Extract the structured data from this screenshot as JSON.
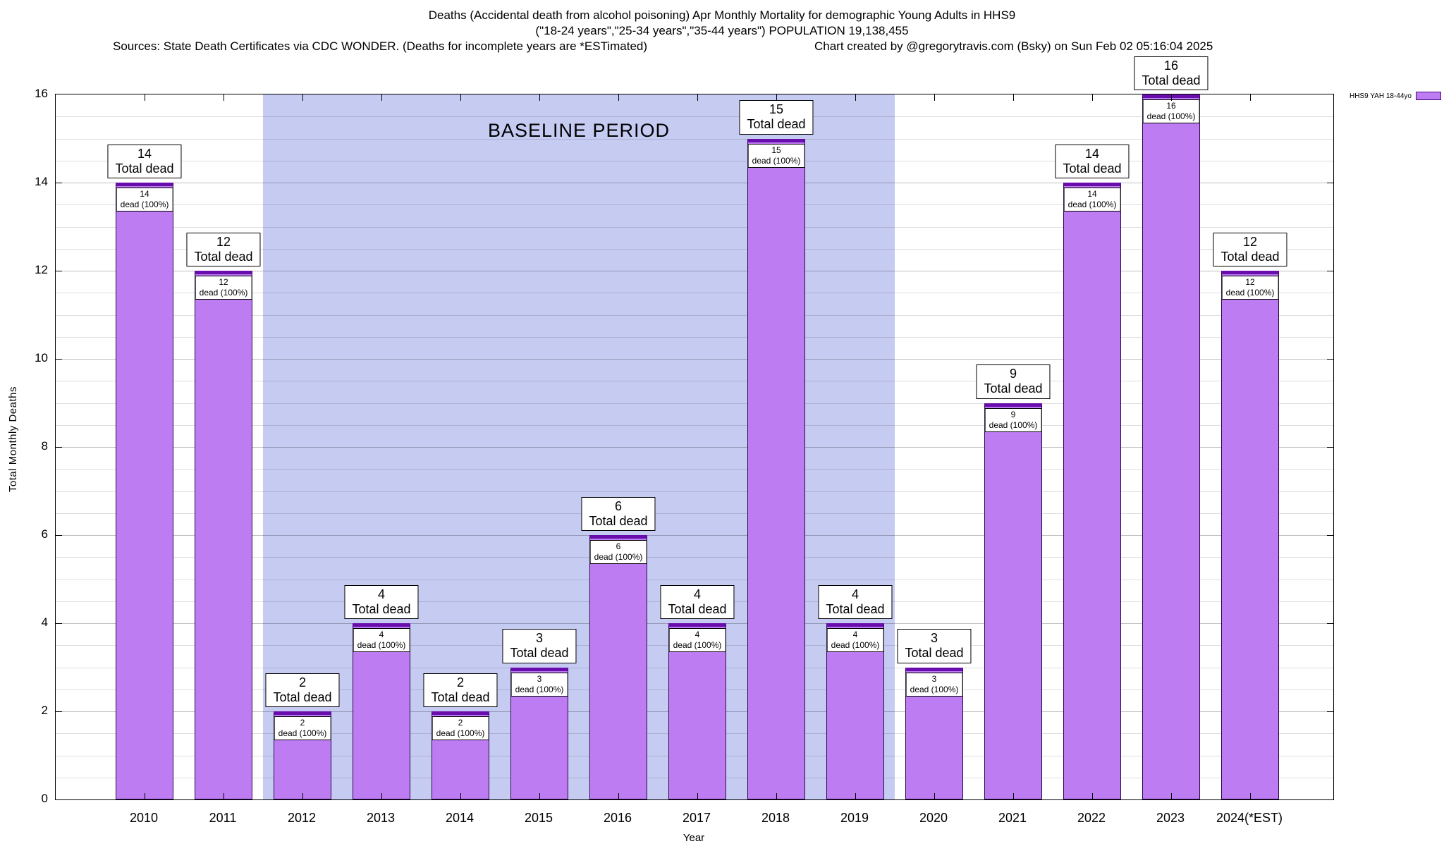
{
  "header": {
    "title_line1": "Deaths (Accidental death from alcohol poisoning) Apr Monthly Mortality for demographic Young Adults in HHS9",
    "title_line2": "(\"18-24 years\",\"25-34 years\",\"35-44 years\") POPULATION 19,138,455",
    "sources": "Sources: State Death Certificates via CDC WONDER. (Deaths for incomplete years are *ESTimated)",
    "credit": "Chart created by @gregorytravis.com (Bsky) on Sun Feb 02 05:16:04 2025"
  },
  "legend": {
    "label": "HHS9 YAH 18-44yo"
  },
  "chart_data": {
    "type": "bar",
    "title": "Deaths (Accidental death from alcohol poisoning) Apr Monthly Mortality for demographic Young Adults in HHS9",
    "subtitle": "(\"18-24 years\",\"25-34 years\",\"35-44 years\") POPULATION 19,138,455",
    "series_name": "HHS9 YAH 18-44yo",
    "xlabel": "Year",
    "ylabel": "Total Monthly Deaths",
    "ylim": [
      0,
      16
    ],
    "yticks": [
      0,
      2,
      4,
      6,
      8,
      10,
      12,
      14,
      16
    ],
    "grid": true,
    "legend_position": "top-right-outside",
    "categories": [
      "2010",
      "2011",
      "2012",
      "2013",
      "2014",
      "2015",
      "2016",
      "2017",
      "2018",
      "2019",
      "2020",
      "2021",
      "2022",
      "2023",
      "2024(*EST)"
    ],
    "values": [
      14,
      12,
      2,
      4,
      2,
      3,
      6,
      4,
      15,
      4,
      3,
      9,
      14,
      16,
      12
    ],
    "bar_label_top_suffix": "Total dead",
    "bar_label_inner_suffix": "dead (100%)",
    "baseline_period": {
      "label": "BASELINE PERIOD",
      "from": "2012",
      "to": "2019",
      "color": "#c6cbf2"
    },
    "colors": {
      "fill": "#bd7cf2",
      "cap": "#6a0dad",
      "border": "#2a0a4a"
    }
  }
}
